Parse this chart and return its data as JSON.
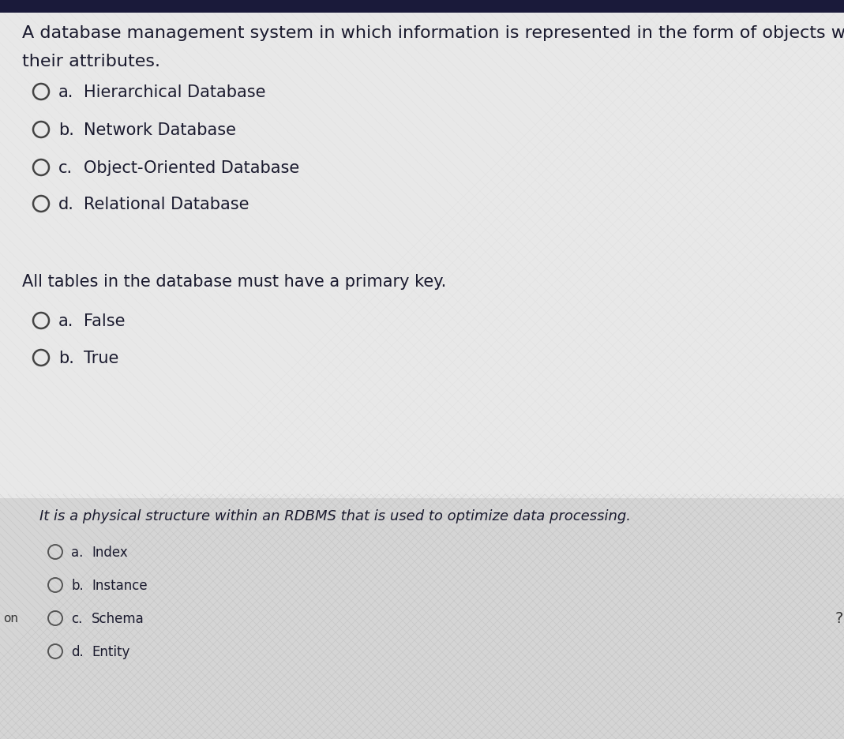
{
  "bg_color": "#e8e8e8",
  "bg_color_light": "#dcdcdc",
  "top_bar_color": "#1a1a3a",
  "text_color": "#1a1a2e",
  "circle_color": "#444444",
  "question1_line1": "A database management system in which information is represented in the form of objects with",
  "question1_line2": "their attributes.",
  "q1_options": [
    [
      "a.",
      "Hierarchical Database"
    ],
    [
      "b.",
      "Network Database"
    ],
    [
      "c.",
      "Object-Oriented Database"
    ],
    [
      "d.",
      "Relational Database"
    ]
  ],
  "question2": "All tables in the database must have a primary key.",
  "q2_options": [
    [
      "a.",
      "False"
    ],
    [
      "b.",
      "True"
    ]
  ],
  "question3": "It is a physical structure within an RDBMS that is used to optimize data processing.",
  "q3_options": [
    [
      "a.",
      "Index"
    ],
    [
      "b.",
      "Instance"
    ],
    [
      "c.",
      "Schema"
    ],
    [
      "d.",
      "Entity"
    ]
  ],
  "left_label": "on",
  "right_label": "?",
  "q1_fontsize": 16,
  "q2_fontsize": 15,
  "q3_fontsize": 13,
  "opt1_fontsize": 15,
  "opt2_fontsize": 15,
  "opt3_fontsize": 12
}
